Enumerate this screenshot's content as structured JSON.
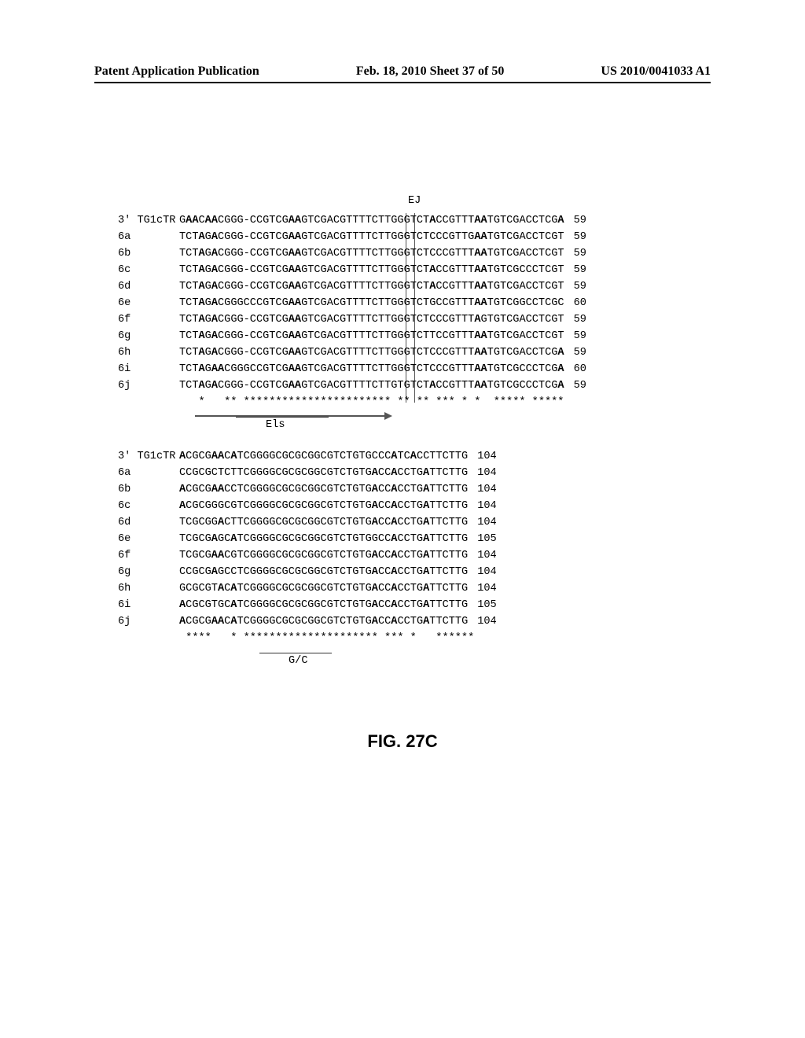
{
  "header": {
    "left": "Patent Application Publication",
    "middle": "Feb. 18, 2010  Sheet 37 of 50",
    "right": "US 2010/0041033 A1"
  },
  "ej_label": "EJ",
  "els_label": "Els",
  "gc_label": "G/C",
  "fig_caption": "FIG. 27C",
  "block1": {
    "rows": [
      {
        "label": "3' TG1cTR",
        "seq": "G<b>AA</b>C<b>AA</b>CGGG-CCGTCG<b>AA</b>GTCGACGTTTTCTTGGGTCT<b>A</b>CCGTTT<b>AA</b>TGTCGACCTCG<b>A</b>",
        "num": "59"
      },
      {
        "label": "6a",
        "seq": "TCT<b>A</b>G<b>A</b>CGGG-CCGTCG<b>AA</b>GTCGACGTTTTCTTGGGTCTCCCGTTG<b>AA</b>TGTCGACCTCGT",
        "num": "59"
      },
      {
        "label": "6b",
        "seq": "TCT<b>A</b>G<b>A</b>CGGG-CCGTCG<b>AA</b>GTCGACGTTTTCTTGGGTCTCCCGTTT<b>AA</b>TGTCGACCTCGT",
        "num": "59"
      },
      {
        "label": "6c",
        "seq": "TCT<b>A</b>G<b>A</b>CGGG-CCGTCG<b>AA</b>GTCGACGTTTTCTTGGGTCT<b>A</b>CCGTTT<b>AA</b>TGTCGCCCTCGT",
        "num": "59"
      },
      {
        "label": "6d",
        "seq": "TCT<b>A</b>G<b>A</b>CGGG-CCGTCG<b>AA</b>GTCGACGTTTTCTTGGGTCT<b>A</b>CCGTTT<b>AA</b>TGTCGACCTCGT",
        "num": "59"
      },
      {
        "label": "6e",
        "seq": "TCT<b>A</b>G<b>A</b>CGGGCCCGTCG<b>AA</b>GTCGACGTTTTCTTGGGTCTGCCGTTT<b>AA</b>TGTCGGCCTCGC",
        "num": "60"
      },
      {
        "label": "6f",
        "seq": "TCT<b>A</b>G<b>A</b>CGGG-CCGTCG<b>AA</b>GTCGACGTTTTCTTGGGTCTCCCGTTT<b>A</b>GTGTCGACCTCGT",
        "num": "59"
      },
      {
        "label": "6g",
        "seq": "TCT<b>A</b>G<b>A</b>CGGG-CCGTCG<b>AA</b>GTCGACGTTTTCTTGGGTCTTCCGTTT<b>AA</b>TGTCGACCTCGT",
        "num": "59"
      },
      {
        "label": "6h",
        "seq": "TCT<b>A</b>G<b>A</b>CGGG-CCGTCG<b>AA</b>GTCGACGTTTTCTTGGGTCTCCCGTTT<b>AA</b>TGTCGACCTCG<b>A</b>",
        "num": "59"
      },
      {
        "label": "6i",
        "seq": "TCT<b>A</b>G<b>AA</b>CGGGCCGTCG<b>AA</b>GTCGACGTTTTCTTGGGTCTCCCGTTT<b>AA</b>TGTCGCCCTCG<b>A</b>",
        "num": "60"
      },
      {
        "label": "6j",
        "seq": "TCT<b>A</b>G<b>A</b>CGGG-CCGTCG<b>AA</b>GTCGACGTTTTCTTGTGTCT<b>A</b>CCGTTT<b>AA</b>TGTCGCCCTCG<b>A</b>",
        "num": "59"
      }
    ],
    "consensus": "   *   ** *********************** ** ** *** * *  ***** *****"
  },
  "block2": {
    "rows": [
      {
        "label": "3' TG1cTR",
        "seq": "<b>A</b>CGCG<b>AA</b>C<b>A</b>TCGGGGCGCGCGGCGTCTGTGCCC<b>A</b>TC<b>A</b>CCTTCTTG",
        "num": "104"
      },
      {
        "label": "6a",
        "seq": "CCGCGCTCTTCGGGGCGCGCGGCGTCTGTG<b>A</b>CC<b>A</b>CCTG<b>A</b>TTCTTG",
        "num": "104"
      },
      {
        "label": "6b",
        "seq": "<b>A</b>CGCG<b>AA</b>CCTCGGGGCGCGCGGCGTCTGTG<b>A</b>CC<b>A</b>CCTG<b>A</b>TTCTTG",
        "num": "104"
      },
      {
        "label": "6c",
        "seq": "<b>A</b>CGCGGGCGTCGGGGCGCGCGGCGTCTGTG<b>A</b>CC<b>A</b>CCTG<b>A</b>TTCTTG",
        "num": "104"
      },
      {
        "label": "6d",
        "seq": "TCGCGG<b>A</b>CTTCGGGGCGCGCGGCGTCTGTG<b>A</b>CC<b>A</b>CCTG<b>A</b>TTCTTG",
        "num": "104"
      },
      {
        "label": "6e",
        "seq": "TCGCG<b>A</b>GC<b>A</b>TCGGGGCGCGCGGCGTCTGTGGCC<b>A</b>CCTG<b>A</b>TTCTTG",
        "num": "105"
      },
      {
        "label": "6f",
        "seq": "TCGCG<b>AA</b>CGTCGGGGCGCGCGGCGTCTGTG<b>A</b>CC<b>A</b>CCTG<b>A</b>TTCTTG",
        "num": "104"
      },
      {
        "label": "6g",
        "seq": "CCGCG<b>A</b>GCCTCGGGGCGCGCGGCGTCTGTG<b>A</b>CC<b>A</b>CCTG<b>A</b>TTCTTG",
        "num": "104"
      },
      {
        "label": "6h",
        "seq": "GCGCGT<b>A</b>C<b>A</b>TCGGGGCGCGCGGCGTCTGTG<b>A</b>CC<b>A</b>CCTG<b>A</b>TTCTTG",
        "num": "104"
      },
      {
        "label": "6i",
        "seq": "<b>A</b>CGCGTGC<b>A</b>TCGGGGCGCGCGGCGTCTGTG<b>A</b>CC<b>A</b>CCTG<b>A</b>TTCTTG",
        "num": "105"
      },
      {
        "label": "6j",
        "seq": "<b>A</b>CGCG<b>AA</b>C<b>A</b>TCGGGGCGCGCGGCGTCTGTG<b>A</b>CC<b>A</b>CCTG<b>A</b>TTCTTG",
        "num": "104"
      }
    ],
    "consensus": " ****   * ********************* *** *   ******"
  }
}
